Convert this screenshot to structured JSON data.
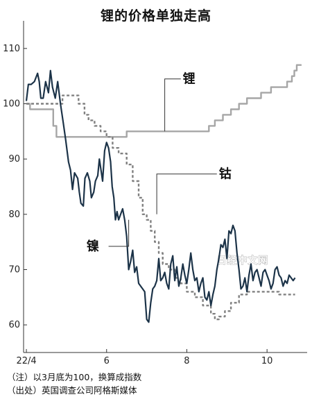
{
  "notes": {
    "note1": "（注）以3月底为100，换算成指数",
    "note2": "（出处）英国调查公司阿格斯媒体"
  },
  "watermark": "日经中文网",
  "chart_data": {
    "type": "line",
    "title": "锂的价格单独走高",
    "xlabel": "",
    "ylabel": "",
    "ylim": [
      55,
      115
    ],
    "yticks": [
      60,
      70,
      80,
      90,
      100,
      110
    ],
    "xticks": [
      {
        "label": "22/4",
        "t": 0
      },
      {
        "label": "6",
        "t": 2
      },
      {
        "label": "8",
        "t": 4
      },
      {
        "label": "10",
        "t": 6
      }
    ],
    "xlim": [
      -0.07,
      7.0
    ],
    "grid": false,
    "series": [
      {
        "name": "锂",
        "color": "#a6a6a6",
        "style": "solid",
        "step": true,
        "x": [
          0.0,
          0.09,
          0.5,
          0.67,
          0.75,
          1.0,
          1.5,
          2.0,
          2.3,
          2.5,
          3.0,
          3.5,
          4.5,
          4.55,
          4.7,
          4.9,
          5.1,
          5.3,
          5.5,
          5.7,
          5.85,
          6.0,
          6.1,
          6.3,
          6.5,
          6.62,
          6.68,
          6.74,
          6.8,
          6.86
        ],
        "values": [
          100.0,
          99.0,
          99.0,
          96.0,
          94.0,
          94.0,
          94.0,
          94.0,
          94.0,
          95.0,
          95.0,
          95.0,
          95.0,
          96.0,
          97.0,
          98.0,
          99.0,
          100.0,
          101.0,
          101.0,
          102.0,
          102.0,
          103.0,
          103.0,
          104.0,
          105.0,
          106.0,
          107.0,
          107.0,
          107.0
        ],
        "label_annotation": "锂"
      },
      {
        "name": "钴",
        "color": "#808080",
        "style": "dashed",
        "step": true,
        "x": [
          0.0,
          0.4,
          0.9,
          1.3,
          1.45,
          1.55,
          1.7,
          1.85,
          2.0,
          2.15,
          2.3,
          2.5,
          2.65,
          2.8,
          2.9,
          3.0,
          3.1,
          3.2,
          3.3,
          3.4,
          3.55,
          3.7,
          3.85,
          4.0,
          4.2,
          4.4,
          4.6,
          4.7,
          4.8,
          4.95,
          5.1,
          5.3,
          5.5,
          5.7,
          5.9,
          6.1,
          6.3,
          6.7
        ],
        "values": [
          100.0,
          100.0,
          101.5,
          100.0,
          98.0,
          97.0,
          96.0,
          95.0,
          94.0,
          92.0,
          91.0,
          89.0,
          86.0,
          83.0,
          80.0,
          79.0,
          77.0,
          75.0,
          73.0,
          71.0,
          70.0,
          68.5,
          67.5,
          66.0,
          65.0,
          63.5,
          62.0,
          61.0,
          61.5,
          62.5,
          64.0,
          65.5,
          66.0,
          66.0,
          66.0,
          66.0,
          65.5,
          65.5
        ],
        "label_annotation": "钴"
      },
      {
        "name": "镍",
        "color": "#1c3348",
        "style": "solid",
        "step": false,
        "x": [
          0.0,
          0.05,
          0.12,
          0.2,
          0.28,
          0.32,
          0.36,
          0.42,
          0.48,
          0.55,
          0.6,
          0.65,
          0.72,
          0.78,
          0.85,
          0.92,
          0.98,
          1.05,
          1.1,
          1.15,
          1.2,
          1.28,
          1.32,
          1.36,
          1.42,
          1.46,
          1.52,
          1.58,
          1.62,
          1.68,
          1.72,
          1.78,
          1.82,
          1.86,
          1.9,
          1.95,
          2.0,
          2.05,
          2.1,
          2.14,
          2.18,
          2.22,
          2.26,
          2.3,
          2.35,
          2.4,
          2.45,
          2.5,
          2.55,
          2.6,
          2.65,
          2.7,
          2.75,
          2.8,
          2.85,
          2.9,
          2.95,
          3.0,
          3.05,
          3.1,
          3.15,
          3.2,
          3.25,
          3.3,
          3.35,
          3.4,
          3.45,
          3.5,
          3.55,
          3.6,
          3.65,
          3.7,
          3.75,
          3.8,
          3.85,
          3.9,
          3.95,
          4.0,
          4.05,
          4.1,
          4.15,
          4.2,
          4.25,
          4.3,
          4.35,
          4.4,
          4.45,
          4.5,
          4.55,
          4.6,
          4.65,
          4.7,
          4.75,
          4.8,
          4.85,
          4.9,
          4.95,
          5.0,
          5.05,
          5.1,
          5.15,
          5.2,
          5.25,
          5.3,
          5.35,
          5.4,
          5.45,
          5.5,
          5.55,
          5.6,
          5.65,
          5.7,
          5.75,
          5.8,
          5.85,
          5.9,
          5.95,
          6.0,
          6.05,
          6.1,
          6.15,
          6.2,
          6.25,
          6.3,
          6.35,
          6.4,
          6.45,
          6.5,
          6.55,
          6.6,
          6.65,
          6.7
        ],
        "values": [
          100.5,
          103.5,
          103.5,
          104.0,
          105.5,
          104.0,
          101.0,
          101.0,
          104.0,
          102.0,
          106.0,
          103.0,
          101.0,
          104.0,
          100.0,
          96.5,
          93.5,
          89.5,
          88.0,
          84.5,
          87.5,
          86.5,
          84.0,
          82.0,
          81.5,
          86.5,
          87.5,
          86.0,
          83.0,
          84.0,
          86.0,
          87.0,
          90.0,
          88.0,
          86.0,
          91.5,
          93.0,
          92.0,
          89.5,
          85.0,
          83.0,
          79.0,
          80.5,
          79.0,
          80.0,
          81.0,
          79.0,
          76.0,
          70.0,
          71.5,
          73.5,
          69.5,
          70.5,
          67.5,
          67.0,
          66.5,
          66.0,
          61.0,
          60.5,
          64.0,
          66.5,
          67.0,
          68.0,
          72.0,
          68.0,
          68.5,
          69.5,
          67.5,
          66.5,
          71.0,
          72.5,
          68.0,
          70.5,
          67.0,
          68.5,
          71.0,
          69.0,
          67.5,
          70.0,
          73.0,
          70.0,
          68.0,
          68.5,
          66.0,
          67.5,
          68.5,
          65.0,
          64.5,
          66.0,
          63.5,
          65.5,
          67.0,
          70.0,
          72.0,
          74.5,
          74.0,
          75.5,
          72.0,
          77.0,
          76.5,
          78.0,
          77.0,
          73.0,
          70.0,
          66.5,
          67.0,
          68.5,
          66.0,
          69.0,
          71.0,
          68.0,
          69.5,
          70.0,
          68.5,
          67.0,
          69.5,
          70.0,
          69.0,
          68.0,
          66.5,
          67.5,
          70.0,
          70.5,
          69.0,
          68.5,
          67.0,
          68.0,
          67.5,
          69.0,
          68.5,
          68.0,
          68.5
        ],
        "label_annotation": "镍"
      }
    ]
  }
}
